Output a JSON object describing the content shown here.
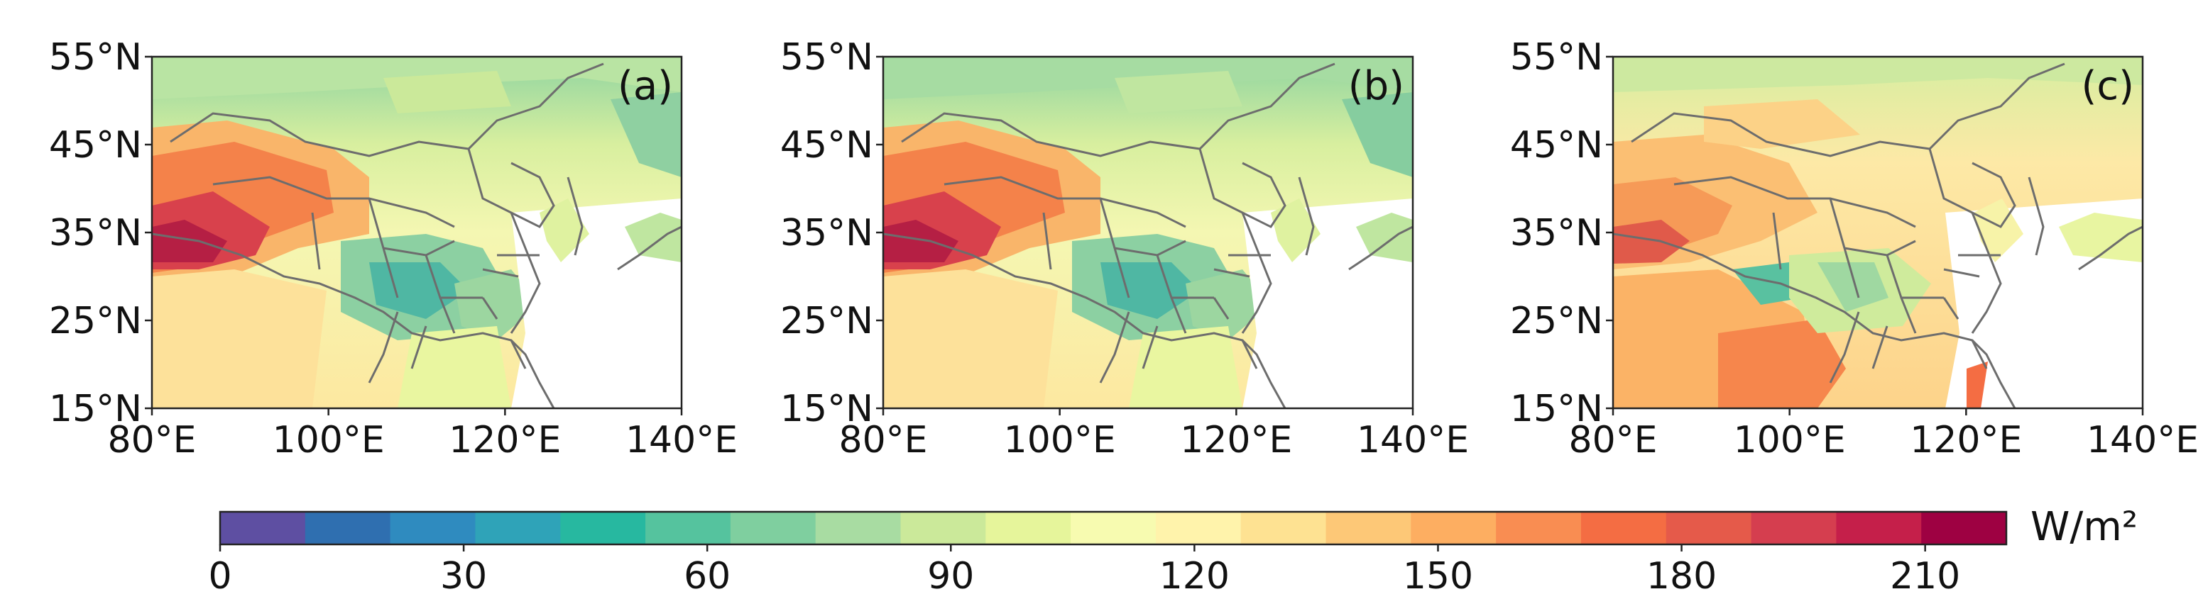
{
  "panels": [
    {
      "label": "(a)"
    },
    {
      "label": "(b)"
    },
    {
      "label": "(c)"
    }
  ],
  "lat_ticks": [
    "55°N",
    "45°N",
    "35°N",
    "25°N",
    "15°N"
  ],
  "lon_ticks": [
    "80°E",
    "100°E",
    "120°E",
    "140°E"
  ],
  "colorbar": {
    "unit": "W/m²",
    "tick_labels": [
      "0",
      "30",
      "60",
      "90",
      "120",
      "150",
      "180",
      "210"
    ],
    "range": [
      0,
      220
    ],
    "step": 10,
    "colors": [
      "#5e4fa2",
      "#2f6fb0",
      "#2f8bbf",
      "#2fa3b8",
      "#27b8a0",
      "#55c39e",
      "#7fcf9f",
      "#a8dca2",
      "#cbe99a",
      "#e6f59b",
      "#f7fbb0",
      "#fff3ab",
      "#fee292",
      "#fdc877",
      "#fdae61",
      "#f98d52",
      "#f46d43",
      "#e55a4a",
      "#d53e4f",
      "#c51f4a",
      "#9e0142"
    ]
  },
  "chart_data": {
    "type": "heatmap",
    "xlim": [
      80,
      140
    ],
    "ylim": [
      15,
      55
    ],
    "unit": "W/m²"
  }
}
